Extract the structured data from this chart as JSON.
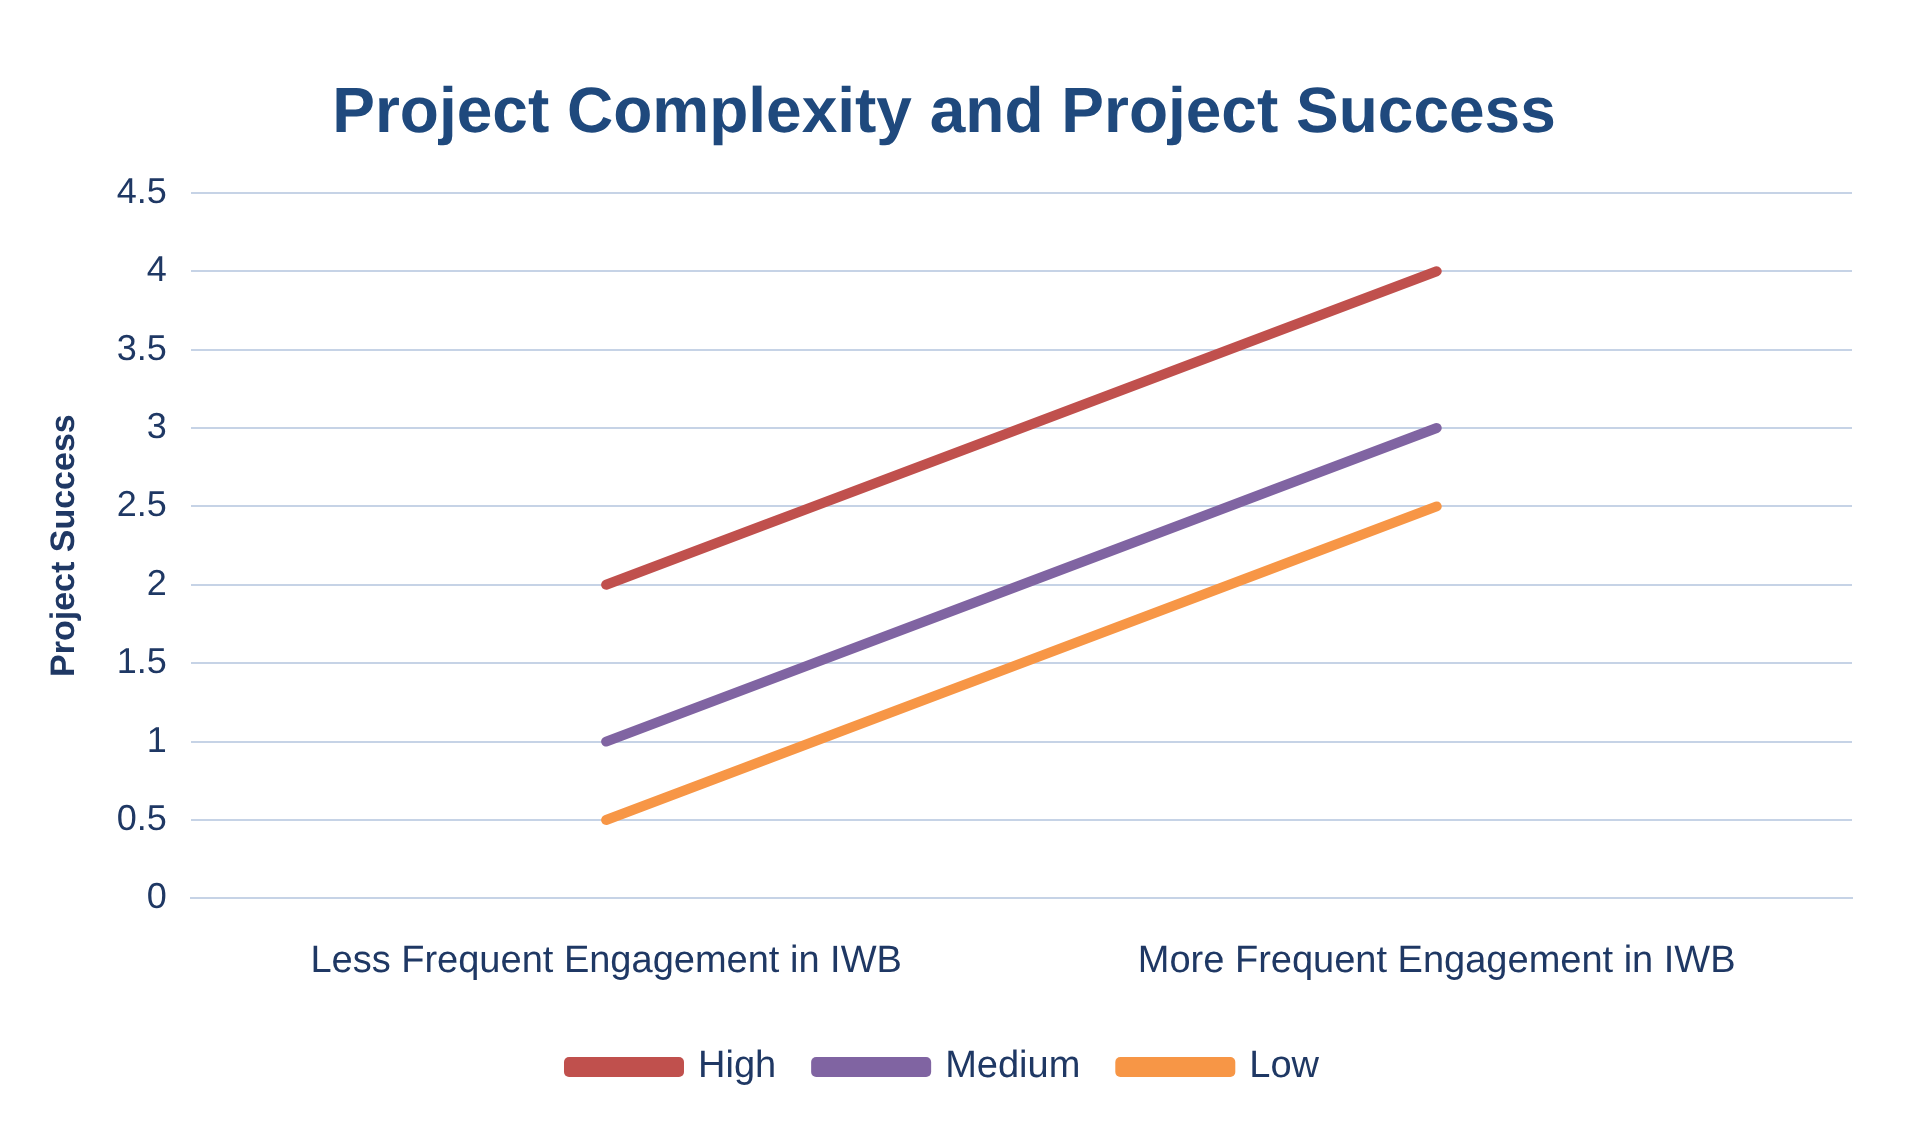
{
  "chart_data": {
    "type": "line",
    "title": "Project Complexity and Project Success",
    "ylabel": "Project Success",
    "categories": [
      "Less Frequent Engagement in IWB",
      "More Frequent Engagement in IWB"
    ],
    "series": [
      {
        "name": "High",
        "color": "#c0504d",
        "values": [
          2,
          4
        ]
      },
      {
        "name": "Medium",
        "color": "#8064a2",
        "values": [
          1,
          3
        ]
      },
      {
        "name": "Low",
        "color": "#f79646",
        "values": [
          0.5,
          2.5
        ]
      }
    ],
    "ylim": [
      0,
      4.5
    ],
    "yticks": [
      0,
      0.5,
      1,
      1.5,
      2,
      2.5,
      3,
      3.5,
      4,
      4.5
    ],
    "grid": "y",
    "legend": "bottom",
    "marker": "none",
    "line_style": "solid"
  }
}
